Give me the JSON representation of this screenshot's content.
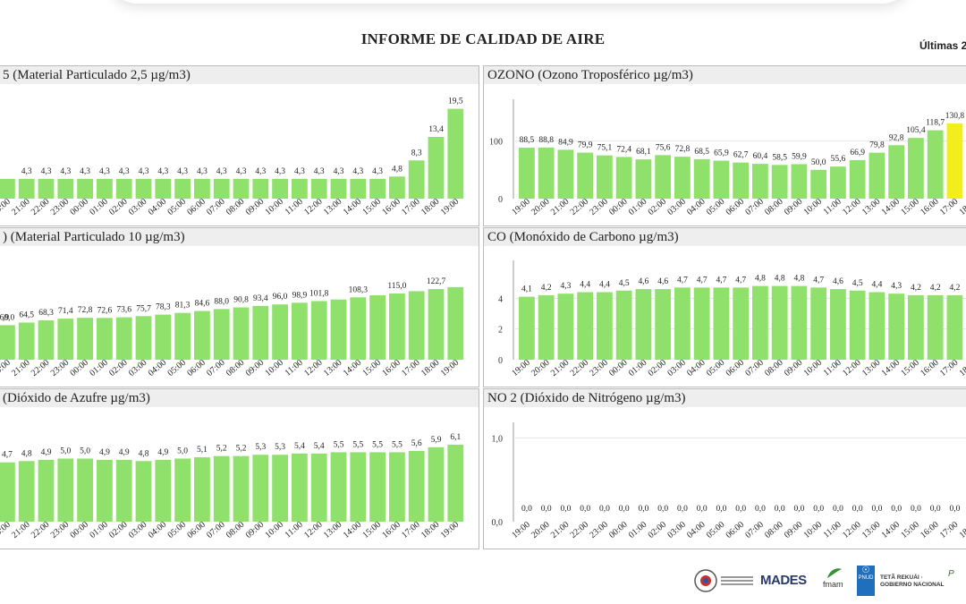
{
  "report": {
    "title": "INFORME DE CALIDAD DE AIRE",
    "subtitle": "Últimas 2"
  },
  "colors": {
    "green": "#90e16c",
    "yellow": "#f2ee1b",
    "grid": "#e4e4e4"
  },
  "chart_data": [
    {
      "id": "pm25",
      "type": "bar",
      "title": "5 (Material Particulado 2,5 µg/m3)",
      "categories": [
        "20:00",
        "21:00",
        "22:00",
        "23:00",
        "00:00",
        "01:00",
        "02:00",
        "03:00",
        "04:00",
        "05:00",
        "06:00",
        "07:00",
        "08:00",
        "09:00",
        "10:00",
        "11:00",
        "12:00",
        "13:00",
        "14:00",
        "15:00",
        "16:00",
        "17:00",
        "18:00",
        "19:00"
      ],
      "values": [
        4.3,
        4.3,
        4.3,
        4.3,
        4.3,
        4.3,
        4.3,
        4.3,
        4.3,
        4.3,
        4.3,
        4.3,
        4.3,
        4.3,
        4.3,
        4.3,
        4.3,
        4.3,
        4.3,
        4.3,
        4.8,
        8.3,
        13.4,
        19.5
      ],
      "labels": [
        "",
        "4,3",
        "4,3",
        "4,3",
        "4,3",
        "4,3",
        "4,3",
        "4,3",
        "4,3",
        "4,3",
        "4,3",
        "4,3",
        "4,3",
        "4,3",
        "4,3",
        "4,3",
        "4,3",
        "4,3",
        "4,3",
        "4,3",
        "4,8",
        "8,3",
        "13,4",
        "19,5"
      ],
      "yticks": [],
      "ylim": [
        0,
        20
      ]
    },
    {
      "id": "ozono",
      "type": "bar",
      "title": "OZONO (Ozono Troposférico µg/m3)",
      "categories": [
        "19:00",
        "20:00",
        "21:00",
        "22:00",
        "23:00",
        "00:00",
        "01:00",
        "02:00",
        "03:00",
        "04:00",
        "05:00",
        "06:00",
        "07:00",
        "08:00",
        "09:00",
        "10:00",
        "11:00",
        "12:00",
        "13:00",
        "14:00",
        "15:00",
        "16:00",
        "17:00",
        "18:00"
      ],
      "values": [
        88.5,
        88.8,
        84.9,
        79.9,
        75.1,
        72.4,
        68.1,
        75.6,
        72.8,
        68.5,
        65.9,
        62.7,
        60.4,
        58.5,
        59.9,
        50.0,
        55.6,
        66.9,
        79.8,
        92.8,
        105.4,
        118.7,
        130.8,
        133.0
      ],
      "labels": [
        "88,5",
        "88,8",
        "84,9",
        "79,9",
        "75,1",
        "72,4",
        "68,1",
        "75,6",
        "72,8",
        "68,5",
        "65,9",
        "62,7",
        "60,4",
        "58,5",
        "59,9",
        "50,0",
        "55,6",
        "66,9",
        "79,8",
        "92,8",
        "105,4",
        "118,7",
        "130,8",
        ""
      ],
      "highlight": [
        22,
        23
      ],
      "yticks": [
        [
          "0",
          0
        ],
        [
          "100",
          100
        ]
      ],
      "ylim": [
        0,
        160
      ]
    },
    {
      "id": "pm10",
      "type": "bar",
      "title": ") (Material Particulado 10 µg/m3)",
      "categories": [
        "20:00",
        "21:00",
        "22:00",
        "23:00",
        "00:00",
        "01:00",
        "02:00",
        "03:00",
        "04:00",
        "05:00",
        "06:00",
        "07:00",
        "08:00",
        "09:00",
        "10:00",
        "11:00",
        "12:00",
        "13:00",
        "14:00",
        "15:00",
        "16:00",
        "17:00",
        "18:00",
        "19:00"
      ],
      "values": [
        60.0,
        64.5,
        68.3,
        71.4,
        72.8,
        72.6,
        73.6,
        75.7,
        78.3,
        81.3,
        84.6,
        88.0,
        90.8,
        93.4,
        96.0,
        98.9,
        101.8,
        104.5,
        108.3,
        111.8,
        115.0,
        119.0,
        122.7,
        126.0
      ],
      "labels": [
        "60,0",
        "64,5",
        "68,3",
        "71,4",
        "72,8",
        "72,6",
        "73,6",
        "75,7",
        "78,3",
        "81,3",
        "84,6",
        "88,0",
        "90,8",
        "93,4",
        "96,0",
        "98,9",
        "101,8",
        "",
        "108,3",
        "",
        "115,0",
        "",
        "122,7",
        ""
      ],
      "leading_labels": [
        ",9"
      ],
      "yticks": [],
      "ylim": [
        0,
        160
      ]
    },
    {
      "id": "co",
      "type": "bar",
      "title": "CO (Monóxido de Carbono µg/m3)",
      "categories": [
        "19:00",
        "20:00",
        "21:00",
        "22:00",
        "23:00",
        "00:00",
        "01:00",
        "02:00",
        "03:00",
        "04:00",
        "05:00",
        "06:00",
        "07:00",
        "08:00",
        "09:00",
        "10:00",
        "11:00",
        "12:00",
        "13:00",
        "14:00",
        "15:00",
        "16:00",
        "17:00",
        "18:00"
      ],
      "values": [
        4.1,
        4.2,
        4.3,
        4.4,
        4.4,
        4.5,
        4.6,
        4.6,
        4.7,
        4.7,
        4.7,
        4.7,
        4.8,
        4.8,
        4.8,
        4.7,
        4.6,
        4.5,
        4.4,
        4.3,
        4.2,
        4.2,
        4.2,
        4.2
      ],
      "labels": [
        "4,1",
        "4,2",
        "4,3",
        "4,4",
        "4,4",
        "4,5",
        "4,6",
        "4,6",
        "4,7",
        "4,7",
        "4,7",
        "4,7",
        "4,8",
        "4,8",
        "4,8",
        "4,7",
        "4,6",
        "4,5",
        "4,4",
        "4,3",
        "4,2",
        "4,2",
        "4,2",
        ""
      ],
      "yticks": [
        [
          "0",
          0
        ],
        [
          "2",
          2
        ],
        [
          "4",
          4
        ]
      ],
      "ylim": [
        0,
        6
      ]
    },
    {
      "id": "so2",
      "type": "bar",
      "title": "(Dióxido de Azufre µg/m3)",
      "categories": [
        "20:00",
        "21:00",
        "22:00",
        "23:00",
        "00:00",
        "01:00",
        "02:00",
        "03:00",
        "04:00",
        "05:00",
        "06:00",
        "07:00",
        "08:00",
        "09:00",
        "10:00",
        "11:00",
        "12:00",
        "13:00",
        "14:00",
        "15:00",
        "16:00",
        "17:00",
        "18:00",
        "19:00"
      ],
      "values": [
        4.7,
        4.8,
        4.9,
        5.0,
        5.0,
        4.9,
        4.9,
        4.8,
        4.9,
        5.0,
        5.1,
        5.2,
        5.2,
        5.3,
        5.3,
        5.4,
        5.4,
        5.5,
        5.5,
        5.5,
        5.5,
        5.6,
        5.9,
        6.1
      ],
      "labels": [
        "4,7",
        "4,8",
        "4,9",
        "5,0",
        "5,0",
        "4,9",
        "4,9",
        "4,8",
        "4,9",
        "5,0",
        "5,1",
        "5,2",
        "5,2",
        "5,3",
        "5,3",
        "5,4",
        "5,4",
        "5,5",
        "5,5",
        "5,5",
        "5,5",
        "5,6",
        "5,9",
        "6,1"
      ],
      "yticks": [],
      "ylim": [
        0,
        7.3
      ]
    },
    {
      "id": "no2",
      "type": "bar",
      "title": "NO 2 (Dióxido de Nitrógeno µg/m3)",
      "categories": [
        "19:00",
        "20:00",
        "21:00",
        "22:00",
        "23:00",
        "00:00",
        "01:00",
        "02:00",
        "03:00",
        "04:00",
        "05:00",
        "06:00",
        "07:00",
        "08:00",
        "09:00",
        "10:00",
        "11:00",
        "12:00",
        "13:00",
        "14:00",
        "15:00",
        "16:00",
        "17:00",
        "18:00"
      ],
      "values": [
        0,
        0,
        0,
        0,
        0,
        0,
        0,
        0,
        0,
        0,
        0,
        0,
        0,
        0,
        0,
        0,
        0,
        0,
        0,
        0,
        0,
        0,
        0,
        0
      ],
      "labels": [
        "0,0",
        "0,0",
        "0,0",
        "0,0",
        "0,0",
        "0,0",
        "0,0",
        "0,0",
        "0,0",
        "0,0",
        "0,0",
        "0,0",
        "0,0",
        "0,0",
        "0,0",
        "0,0",
        "0,0",
        "0,0",
        "0,0",
        "0,0",
        "0,0",
        "0,0",
        "0,0",
        "0,0"
      ],
      "yticks": [
        [
          "0,0",
          0
        ],
        [
          "1,0",
          1
        ]
      ],
      "ylim": [
        0,
        1.1
      ]
    }
  ],
  "logos": [
    "MADES",
    "fmam",
    "PNUD",
    "TETÃ REKUÁI · GOBIERNO NACIONAL"
  ]
}
